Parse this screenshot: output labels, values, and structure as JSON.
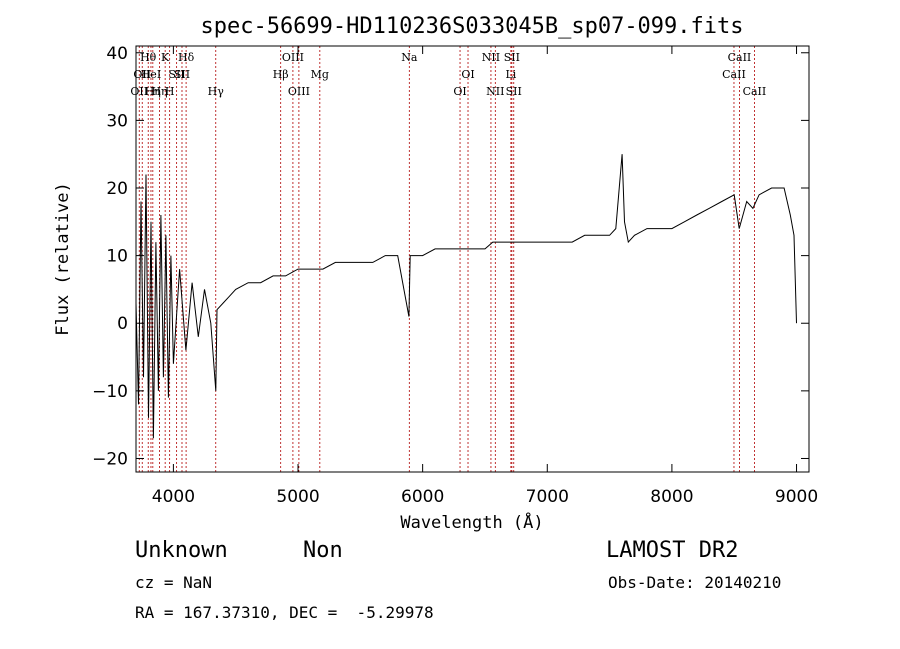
{
  "chart_data": {
    "type": "line",
    "title": "spec-56699-HD110236S033045B_sp07-099.fits",
    "xlabel": "Wavelength (Å)",
    "ylabel": "Flux (relative)",
    "xlim": [
      3700,
      9100
    ],
    "ylim": [
      -22,
      41
    ],
    "xticks": [
      4000,
      5000,
      6000,
      7000,
      8000,
      9000
    ],
    "yticks": [
      -20,
      -10,
      0,
      10,
      20,
      30,
      40
    ],
    "grid": false,
    "series_color": "#000000",
    "line_marker_color": "#b00000",
    "series": [
      {
        "x": [
          3700,
          3720,
          3740,
          3760,
          3780,
          3800,
          3820,
          3840,
          3860,
          3880,
          3900,
          3920,
          3940,
          3960,
          3980,
          4000,
          4050,
          4100,
          4150,
          4200,
          4250,
          4300,
          4340,
          4350,
          4400,
          4450,
          4500,
          4600,
          4700,
          4800,
          4900,
          5000,
          5100,
          5200,
          5300,
          5400,
          5500,
          5600,
          5700,
          5800,
          5890,
          5900,
          6000,
          6100,
          6200,
          6300,
          6400,
          6500,
          6563,
          6600,
          6700,
          6800,
          6900,
          7000,
          7100,
          7200,
          7300,
          7400,
          7500,
          7550,
          7600,
          7620,
          7650,
          7700,
          7800,
          7900,
          8000,
          8100,
          8200,
          8300,
          8400,
          8500,
          8540,
          8600,
          8650,
          8700,
          8800,
          8900,
          8950,
          8980,
          9000
        ],
        "y": [
          3,
          -12,
          18,
          -8,
          22,
          -14,
          15,
          -17,
          12,
          -10,
          16,
          -8,
          13,
          -11,
          10,
          -6,
          8,
          -4,
          6,
          -2,
          5,
          0,
          -10,
          2,
          3,
          4,
          5,
          6,
          6,
          7,
          7,
          8,
          8,
          8,
          9,
          9,
          9,
          9,
          10,
          10,
          1,
          10,
          10,
          11,
          11,
          11,
          11,
          11,
          12,
          12,
          12,
          12,
          12,
          12,
          12,
          12,
          13,
          13,
          13,
          14,
          25,
          15,
          12,
          13,
          14,
          14,
          14,
          15,
          16,
          17,
          18,
          19,
          14,
          18,
          17,
          19,
          20,
          20,
          16,
          13,
          0
        ]
      }
    ],
    "line_markers": [
      {
        "x": 3726,
        "label": "OII",
        "row": 2
      },
      {
        "x": 3750,
        "label": "OII",
        "row": 1
      },
      {
        "x": 3798,
        "label": "Hθ",
        "row": 0
      },
      {
        "x": 3820,
        "label": "HeI",
        "row": 1
      },
      {
        "x": 3835,
        "label": "Hη",
        "row": 2
      },
      {
        "x": 3889,
        "label": "Hη",
        "row": 2
      },
      {
        "x": 3934,
        "label": "K",
        "row": 0
      },
      {
        "x": 3970,
        "label": "H",
        "row": 2
      },
      {
        "x": 4026,
        "label": "SII",
        "row": 1
      },
      {
        "x": 4069,
        "label": "SII",
        "row": 1
      },
      {
        "x": 4102,
        "label": "Hδ",
        "row": 0
      },
      {
        "x": 4340,
        "label": "Hγ",
        "row": 2
      },
      {
        "x": 4861,
        "label": "Hβ",
        "row": 1
      },
      {
        "x": 4959,
        "label": "OIII",
        "row": 0
      },
      {
        "x": 5007,
        "label": "OIII",
        "row": 2
      },
      {
        "x": 5175,
        "label": "Mg",
        "row": 1
      },
      {
        "x": 5893,
        "label": "Na",
        "row": 0
      },
      {
        "x": 6300,
        "label": "OI",
        "row": 2
      },
      {
        "x": 6364,
        "label": "OI",
        "row": 1
      },
      {
        "x": 6548,
        "label": "NII",
        "row": 0
      },
      {
        "x": 6583,
        "label": "NII",
        "row": 2
      },
      {
        "x": 6708,
        "label": "Li",
        "row": 1
      },
      {
        "x": 6716,
        "label": "SII",
        "row": 0
      },
      {
        "x": 6731,
        "label": "SII",
        "row": 2
      },
      {
        "x": 8498,
        "label": "CaII",
        "row": 1
      },
      {
        "x": 8542,
        "label": "CaII",
        "row": 0
      },
      {
        "x": 8662,
        "label": "CaII",
        "row": 2
      }
    ]
  },
  "footer": {
    "object_class": "Unknown",
    "object_subclass": "Non",
    "survey": "LAMOST DR2",
    "cz": "cz = NaN",
    "obs_date": "Obs-Date: 20140210",
    "coords": "RA = 167.37310, DEC =  -5.29978"
  }
}
